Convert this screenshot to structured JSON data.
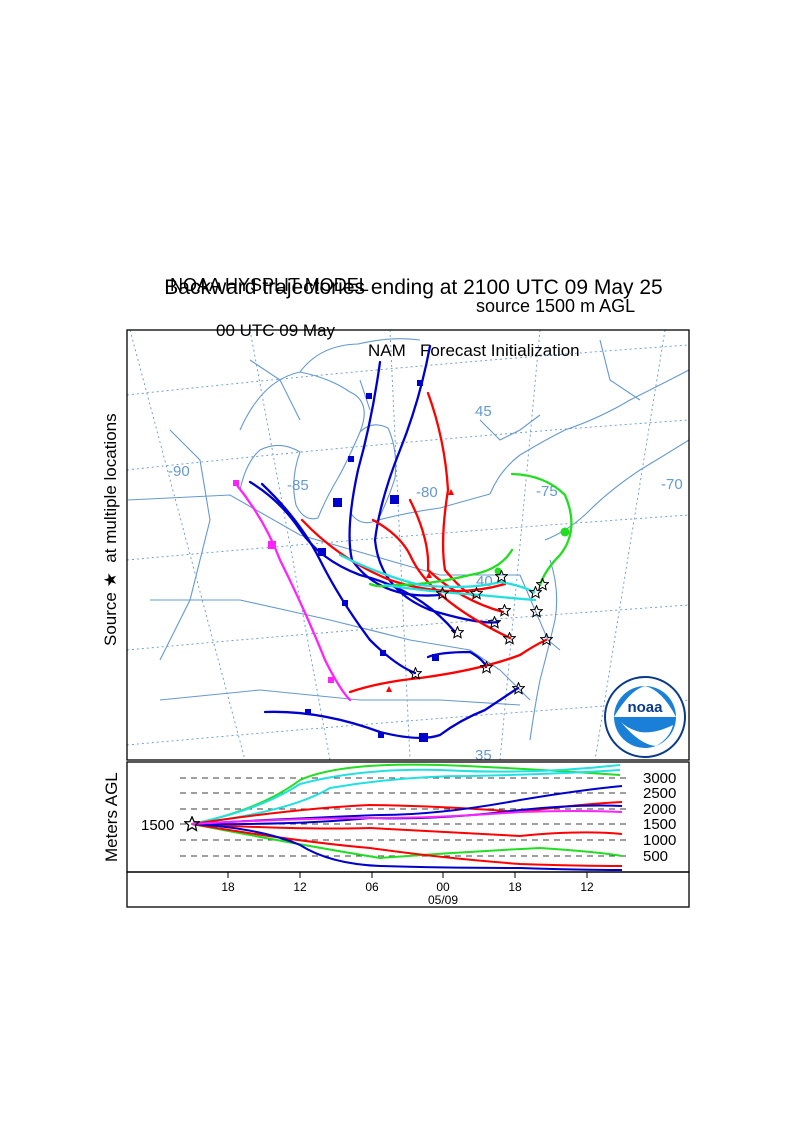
{
  "header": {
    "model": "NOAA HYSPLIT MODEL",
    "source": "source 1500 m AGL",
    "title": "Backward trajectories ending at 2100 UTC 09 May 25",
    "init_time": "00 UTC 09 May",
    "init_model": "NAM   Forecast Initialization"
  },
  "map": {
    "y_axis_label_source": "Source",
    "y_axis_label_rest": "at multiple locations",
    "star_symbol": "★",
    "lon_labels": [
      "-90",
      "-85",
      "-80",
      "-75",
      "-70"
    ],
    "lat_labels": [
      "45",
      "40",
      "35"
    ],
    "logo_text": "noaa",
    "colors": {
      "red": "#ff0000",
      "blue": "#0000cc",
      "green": "#22dd22",
      "cyan": "#22e0e0",
      "magenta": "#ff22ff",
      "geography": "#6699cc",
      "grid": "#6699cc"
    }
  },
  "vertical": {
    "ylabel": "Meters AGL",
    "start_label": "1500",
    "levels": [
      "3000",
      "2500",
      "2000",
      "1500",
      "1000",
      "500"
    ],
    "time_ticks": [
      "18",
      "12",
      "06",
      "00",
      "18",
      "12"
    ],
    "date_label": "05/09"
  }
}
